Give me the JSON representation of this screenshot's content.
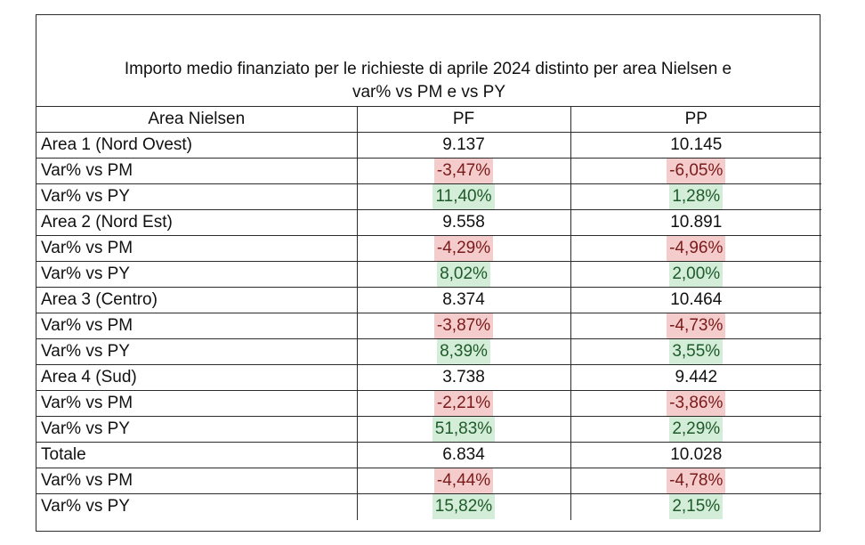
{
  "title": {
    "line1": "Importo medio finanziato per le richieste di aprile 2024 distinto per area Nielsen e",
    "line2": "var% vs PM e vs PY"
  },
  "headers": [
    "Area Nielsen",
    "PF",
    "PP"
  ],
  "rows": [
    {
      "label": "Area 1 (Nord Ovest)",
      "pf": "9.137",
      "pp": "10.145",
      "kind": "value"
    },
    {
      "label": "Var% vs PM",
      "pf": "-3,47%",
      "pp": "-6,05%",
      "kind": "neg"
    },
    {
      "label": "Var% vs PY",
      "pf": "11,40%",
      "pp": "1,28%",
      "kind": "pos"
    },
    {
      "label": "Area 2 (Nord Est)",
      "pf": "9.558",
      "pp": "10.891",
      "kind": "value"
    },
    {
      "label": "Var% vs PM",
      "pf": "-4,29%",
      "pp": "-4,96%",
      "kind": "neg"
    },
    {
      "label": "Var% vs PY",
      "pf": "8,02%",
      "pp": "2,00%",
      "kind": "pos"
    },
    {
      "label": "Area 3 (Centro)",
      "pf": "8.374",
      "pp": "10.464",
      "kind": "value"
    },
    {
      "label": "Var% vs PM",
      "pf": "-3,87%",
      "pp": "-4,73%",
      "kind": "neg"
    },
    {
      "label": "Var% vs PY",
      "pf": "8,39%",
      "pp": "3,55%",
      "kind": "pos"
    },
    {
      "label": "Area 4 (Sud)",
      "pf": "3.738",
      "pp": "9.442",
      "kind": "value"
    },
    {
      "label": "Var% vs PM",
      "pf": "-2,21%",
      "pp": "-3,86%",
      "kind": "neg"
    },
    {
      "label": "Var% vs PY",
      "pf": "51,83%",
      "pp": "2,29%",
      "kind": "pos"
    },
    {
      "label": "Totale",
      "pf": "6.834",
      "pp": "10.028",
      "kind": "value"
    },
    {
      "label": "Var% vs PM",
      "pf": "-4,44%",
      "pp": "-4,78%",
      "kind": "neg"
    },
    {
      "label": "Var% vs PY",
      "pf": "15,82%",
      "pp": "2,15%",
      "kind": "pos"
    }
  ],
  "colors": {
    "negative_fill": "#f4cccc",
    "positive_fill": "#d4edd8",
    "grid_line": "#2b2b2b"
  }
}
